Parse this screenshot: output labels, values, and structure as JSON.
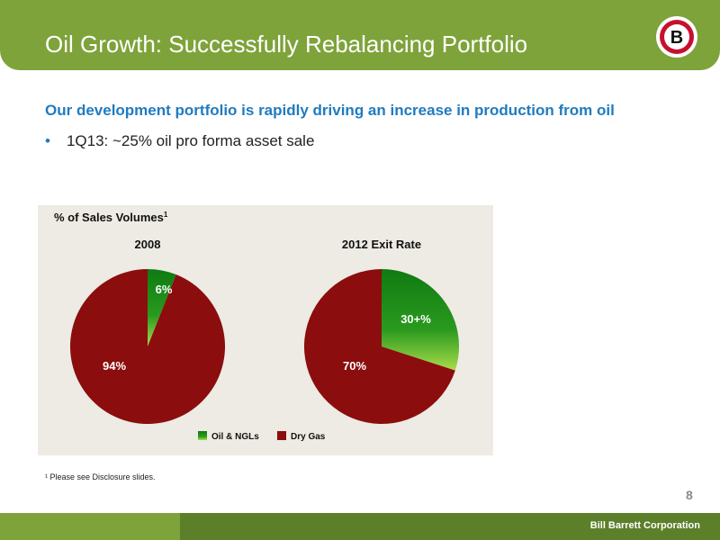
{
  "header": {
    "title": "Oil Growth: Successfully Rebalancing Portfolio",
    "logo_letter": "B"
  },
  "subtitle": "Our development portfolio is rapidly driving an increase in production from oil",
  "bullets": [
    "1Q13: ~25% oil pro forma asset sale"
  ],
  "footnote": "¹ Please see Disclosure slides.",
  "page_number": "8",
  "company": "Bill Barrett Corporation",
  "colors": {
    "header_green": "#7ea33a",
    "footer_green": "#5c7f2a",
    "subtitle_blue": "#1f7bc0",
    "oil_green": "#1a8a1a",
    "gas_red": "#8b0d0d",
    "panel_bg": "#edebe3"
  },
  "chart_data": {
    "type": "pie",
    "title": "% of Sales Volumes¹",
    "legend": [
      "Oil & NGLs",
      "Dry Gas"
    ],
    "charts": [
      {
        "subtitle": "2008",
        "slices": [
          {
            "label": "Oil & NGLs",
            "value": 6,
            "text": "6%"
          },
          {
            "label": "Dry Gas",
            "value": 94,
            "text": "94%"
          }
        ]
      },
      {
        "subtitle": "2012 Exit Rate",
        "slices": [
          {
            "label": "Oil & NGLs",
            "value": 30,
            "text": "30+%"
          },
          {
            "label": "Dry Gas",
            "value": 70,
            "text": "70%"
          }
        ]
      }
    ]
  }
}
